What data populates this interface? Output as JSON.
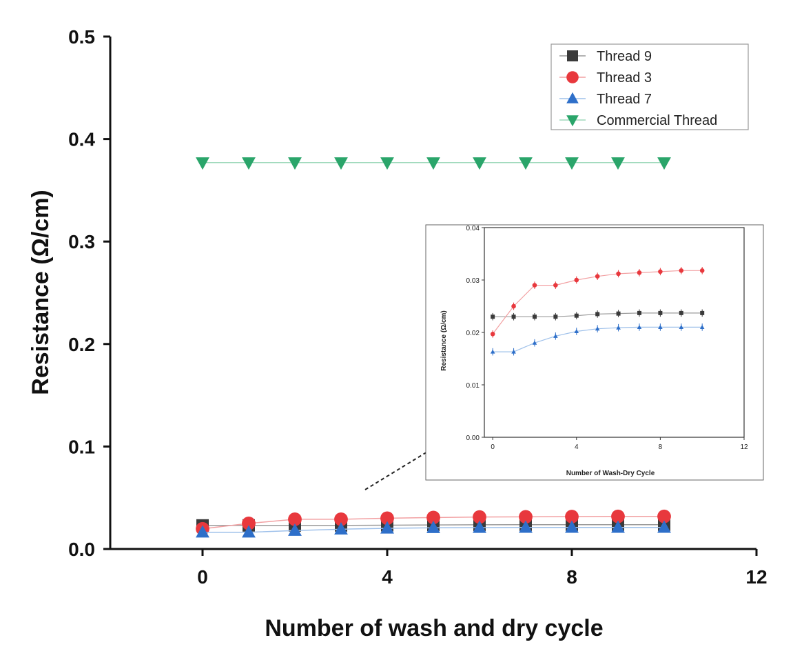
{
  "chart_data": [
    {
      "type": "line",
      "panel": "main",
      "xlabel": "Number of wash and dry cycle",
      "ylabel": "Resistance (Ω/cm)",
      "xlim": [
        -2,
        12
      ],
      "ylim": [
        0,
        0.5
      ],
      "xticks": [
        0,
        4,
        8,
        12
      ],
      "xtick_labels": [
        "0",
        "4",
        "8",
        "12"
      ],
      "yticks": [
        0.0,
        0.1,
        0.2,
        0.3,
        0.4,
        0.5
      ],
      "ytick_labels": [
        "0.0",
        "0.1",
        "0.2",
        "0.3",
        "0.4",
        "0.5"
      ],
      "x": [
        0,
        1,
        2,
        3,
        4,
        5,
        6,
        7,
        8,
        9,
        10
      ],
      "series": [
        {
          "name": "Thread 9",
          "marker": "square",
          "color": "#3a3a3a",
          "line_color": "#9a9a9a",
          "values": [
            0.023,
            0.023,
            0.023,
            0.023,
            0.0232,
            0.0235,
            0.0236,
            0.0237,
            0.0237,
            0.0237,
            0.0237
          ]
        },
        {
          "name": "Thread 3",
          "marker": "circle",
          "color": "#e8383d",
          "line_color": "#f2a0a2",
          "values": [
            0.0197,
            0.025,
            0.029,
            0.029,
            0.03,
            0.0307,
            0.0312,
            0.0314,
            0.0316,
            0.0318,
            0.0318
          ]
        },
        {
          "name": "Thread 7",
          "marker": "triangle-up",
          "color": "#2e6fc9",
          "line_color": "#9ec0ea",
          "values": [
            0.0163,
            0.0163,
            0.018,
            0.0193,
            0.0202,
            0.0207,
            0.0209,
            0.021,
            0.021,
            0.021,
            0.021
          ]
        },
        {
          "name": "Commercial Thread",
          "marker": "triangle-down",
          "color": "#2aa56a",
          "line_color": "#9fd9bb",
          "values": [
            0.377,
            0.377,
            0.377,
            0.377,
            0.377,
            0.377,
            0.377,
            0.377,
            0.377,
            0.377,
            0.377
          ]
        }
      ],
      "legend": {
        "placement": "top-right",
        "entries": [
          "Thread 9",
          "Thread 3",
          "Thread 7",
          "Commercial Thread"
        ]
      },
      "grid": false
    },
    {
      "type": "line",
      "panel": "inset",
      "xlabel": "Number of Wash-Dry Cycle",
      "ylabel": "Resistance (Ω/cm)",
      "xlim": [
        -0.4,
        12
      ],
      "ylim": [
        0,
        0.04
      ],
      "xticks": [
        0,
        4,
        8,
        12
      ],
      "xtick_labels": [
        "0",
        "4",
        "8",
        "12"
      ],
      "yticks": [
        0.0,
        0.01,
        0.02,
        0.03,
        0.04
      ],
      "ytick_labels": [
        "0.00",
        "0.01",
        "0.02",
        "0.03",
        "0.04"
      ],
      "x": [
        0,
        1,
        2,
        3,
        4,
        5,
        6,
        7,
        8,
        9,
        10
      ],
      "error_bar": 0.0007,
      "series_names": [
        "Thread 9",
        "Thread 3",
        "Thread 7"
      ]
    }
  ]
}
